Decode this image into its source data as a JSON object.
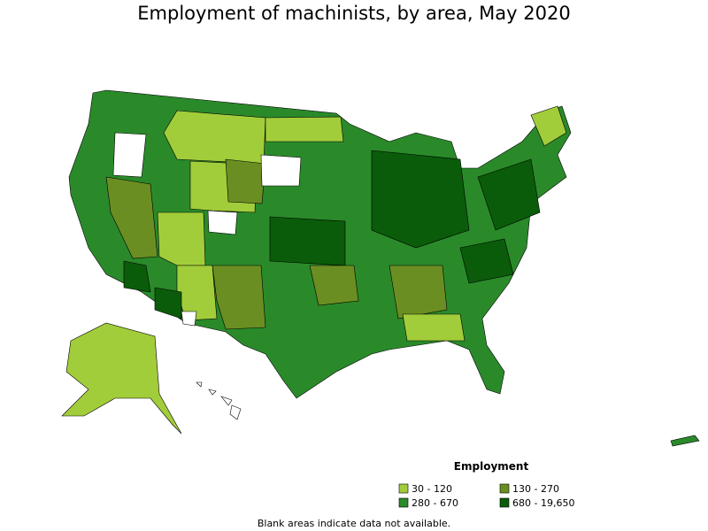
{
  "title": "Employment of machinists, by area, May 2020",
  "legend": {
    "title": "Employment",
    "items": [
      {
        "label": "30 - 120",
        "color": "#a2cd3a"
      },
      {
        "label": "130 - 270",
        "color": "#6b8e23"
      },
      {
        "label": "280 - 670",
        "color": "#2a8a2a"
      },
      {
        "label": "680 - 19,650",
        "color": "#0a5c0a"
      }
    ]
  },
  "note": "Blank areas indicate data not available."
}
